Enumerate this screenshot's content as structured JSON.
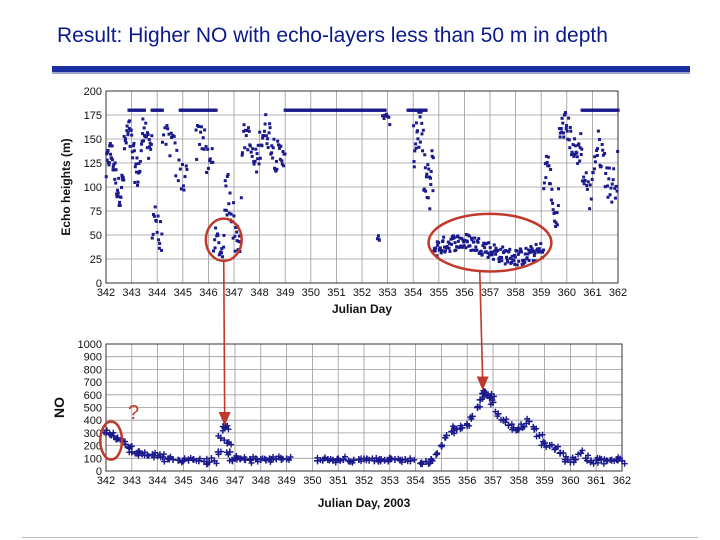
{
  "slide": {
    "title": "Result: Higher NO with echo-layers less than 50 m in depth",
    "question_mark": "?",
    "accent_color": "#1c2f9e",
    "annotation_color": "#c0392b"
  },
  "chart_data": [
    {
      "type": "scatter",
      "title": "",
      "xlabel": "Julian Day",
      "ylabel": "Echo heights (m)",
      "xlim": [
        342,
        362
      ],
      "ylim": [
        0,
        200
      ],
      "xticks": [
        342,
        343,
        344,
        345,
        346,
        347,
        348,
        349,
        350,
        351,
        352,
        353,
        354,
        355,
        356,
        357,
        358,
        359,
        360,
        361,
        362
      ],
      "xtick_labels": [
        "342",
        "343",
        "344",
        "345",
        "346",
        "347",
        "348",
        "349",
        "350",
        "351",
        "352",
        "353",
        "354",
        "355",
        "356",
        "357",
        "358",
        "359",
        "360",
        "361",
        "362"
      ],
      "yticks": [
        0,
        25,
        50,
        75,
        100,
        125,
        150,
        175,
        200
      ],
      "ytick_labels": [
        "0",
        "25",
        "50",
        "75",
        "100",
        "125",
        "150",
        "175",
        "200"
      ],
      "grid": true,
      "marker_color": "#1a1a8c",
      "series": [
        {
          "segments": [
            {
              "x0": 342.0,
              "x1": 342.7,
              "base": 115,
              "amp": 20,
              "noise": 15,
              "n": 40
            },
            {
              "x0": 342.7,
              "x1": 343.4,
              "base": 135,
              "amp": 20,
              "noise": 18,
              "n": 35
            },
            {
              "x0": 343.4,
              "x1": 343.8,
              "base": 150,
              "amp": 15,
              "noise": 15,
              "n": 20
            },
            {
              "x0": 343.8,
              "x1": 344.2,
              "base": 60,
              "amp": 15,
              "noise": 20,
              "n": 15
            },
            {
              "x0": 344.2,
              "x1": 345.2,
              "base": 130,
              "amp": 20,
              "noise": 20,
              "n": 25
            },
            {
              "x0": 345.5,
              "x1": 346.2,
              "base": 140,
              "amp": 20,
              "noise": 20,
              "n": 20
            },
            {
              "x0": 346.2,
              "x1": 346.6,
              "base": 40,
              "amp": 8,
              "noise": 10,
              "n": 15
            },
            {
              "x0": 346.6,
              "x1": 347.3,
              "base": 70,
              "amp": 25,
              "noise": 25,
              "n": 30
            },
            {
              "x0": 347.3,
              "x1": 348.0,
              "base": 140,
              "amp": 15,
              "noise": 15,
              "n": 25
            },
            {
              "x0": 348.0,
              "x1": 349.0,
              "base": 145,
              "amp": 15,
              "noise": 18,
              "n": 40
            },
            {
              "x0": 352.6,
              "x1": 352.7,
              "base": 45,
              "amp": 3,
              "noise": 4,
              "n": 4
            },
            {
              "x0": 352.8,
              "x1": 353.1,
              "base": 172,
              "amp": 4,
              "noise": 6,
              "n": 8
            },
            {
              "x0": 354.0,
              "x1": 354.8,
              "base": 130,
              "amp": 35,
              "noise": 30,
              "n": 40
            },
            {
              "x0": 354.8,
              "x1": 359.1,
              "base": 35,
              "amp": 8,
              "noise": 9,
              "n": 170
            },
            {
              "x0": 359.1,
              "x1": 359.7,
              "base": 95,
              "amp": 30,
              "noise": 15,
              "n": 25
            },
            {
              "x0": 359.7,
              "x1": 360.6,
              "base": 150,
              "amp": 15,
              "noise": 15,
              "n": 40
            },
            {
              "x0": 360.6,
              "x1": 361.0,
              "base": 100,
              "amp": 10,
              "noise": 15,
              "n": 12
            },
            {
              "x0": 361.0,
              "x1": 362.0,
              "base": 120,
              "amp": 20,
              "noise": 20,
              "n": 35
            }
          ],
          "saturated_runs": [
            {
              "x0": 342.9,
              "x1": 343.5,
              "y": 180
            },
            {
              "x0": 343.8,
              "x1": 344.2,
              "y": 180
            },
            {
              "x0": 344.9,
              "x1": 346.3,
              "y": 180
            },
            {
              "x0": 349.0,
              "x1": 352.9,
              "y": 180
            },
            {
              "x0": 353.8,
              "x1": 354.5,
              "y": 180
            },
            {
              "x0": 360.6,
              "x1": 362.0,
              "y": 180
            }
          ]
        }
      ],
      "annotations": [
        {
          "type": "circle",
          "cx": 346.6,
          "cy": 45,
          "rx_days": 0.7,
          "ry_units": 22
        },
        {
          "type": "circle",
          "cx": 357.0,
          "cy": 42,
          "rx_days": 2.4,
          "ry_units": 30
        }
      ]
    },
    {
      "type": "scatter",
      "title": "",
      "xlabel": "Julian Day, 2003",
      "ylabel": "NO",
      "xlim": [
        342,
        362
      ],
      "ylim": [
        0,
        1000
      ],
      "xticks": [
        342,
        343,
        344,
        345,
        346,
        347,
        348,
        349,
        350,
        351,
        352,
        353,
        354,
        355,
        356,
        357,
        358,
        359,
        360,
        361,
        362
      ],
      "xtick_labels": [
        "342",
        "343",
        "344",
        "345",
        "346",
        "347",
        "348",
        "349",
        "350",
        "351",
        "352",
        "353",
        "354",
        "355",
        "356",
        "357",
        "358",
        "359",
        "360",
        "361",
        "362"
      ],
      "yticks": [
        0,
        100,
        200,
        300,
        400,
        500,
        600,
        700,
        800,
        900,
        1000
      ],
      "ytick_labels": [
        "0",
        "100",
        "200",
        "300",
        "400",
        "500",
        "600",
        "700",
        "800",
        "900",
        "1000"
      ],
      "grid": true,
      "marker_color": "#1a1a8c",
      "series": [
        {
          "points": [
            [
              342.0,
              300
            ],
            [
              342.15,
              290
            ],
            [
              342.3,
              275
            ],
            [
              342.45,
              260
            ],
            [
              342.6,
              240
            ],
            [
              342.75,
              210
            ],
            [
              342.9,
              180
            ],
            [
              343.0,
              150
            ],
            [
              343.2,
              140
            ],
            [
              343.4,
              135
            ],
            [
              343.6,
              125
            ],
            [
              343.8,
              130
            ],
            [
              344.0,
              120
            ],
            [
              344.2,
              110
            ],
            [
              344.4,
              95
            ],
            [
              344.6,
              90
            ],
            [
              344.8,
              85
            ],
            [
              345.0,
              80
            ],
            [
              345.2,
              85
            ],
            [
              345.4,
              90
            ],
            [
              345.6,
              80
            ],
            [
              345.8,
              75
            ],
            [
              346.0,
              70
            ],
            [
              346.2,
              80
            ],
            [
              346.35,
              150
            ],
            [
              346.45,
              260
            ],
            [
              346.55,
              350
            ],
            [
              346.6,
              340
            ],
            [
              346.7,
              220
            ],
            [
              346.8,
              150
            ],
            [
              346.9,
              80
            ],
            [
              347.0,
              100
            ],
            [
              347.2,
              95
            ],
            [
              347.4,
              90
            ],
            [
              347.6,
              85
            ],
            [
              347.8,
              95
            ],
            [
              348.0,
              90
            ],
            [
              348.2,
              85
            ],
            [
              348.4,
              90
            ],
            [
              348.6,
              95
            ],
            [
              348.8,
              90
            ],
            [
              349.0,
              95
            ],
            [
              350.2,
              80
            ],
            [
              350.4,
              85
            ],
            [
              350.6,
              90
            ],
            [
              350.8,
              85
            ],
            [
              351.0,
              95
            ],
            [
              351.2,
              90
            ],
            [
              351.4,
              80
            ],
            [
              351.6,
              85
            ],
            [
              351.8,
              90
            ],
            [
              352.0,
              95
            ],
            [
              352.2,
              85
            ],
            [
              352.4,
              80
            ],
            [
              352.6,
              90
            ],
            [
              352.8,
              85
            ],
            [
              353.0,
              95
            ],
            [
              353.2,
              90
            ],
            [
              353.4,
              85
            ],
            [
              353.6,
              90
            ],
            [
              353.8,
              80
            ],
            [
              354.2,
              60
            ],
            [
              354.4,
              75
            ],
            [
              354.6,
              90
            ],
            [
              354.8,
              130
            ],
            [
              355.0,
              200
            ],
            [
              355.2,
              280
            ],
            [
              355.4,
              310
            ],
            [
              355.6,
              330
            ],
            [
              355.8,
              340
            ],
            [
              356.0,
              360
            ],
            [
              356.2,
              430
            ],
            [
              356.4,
              500
            ],
            [
              356.5,
              560
            ],
            [
              356.6,
              610
            ],
            [
              356.7,
              620
            ],
            [
              356.8,
              600
            ],
            [
              356.9,
              580
            ],
            [
              357.0,
              540
            ],
            [
              357.2,
              450
            ],
            [
              357.4,
              400
            ],
            [
              357.6,
              360
            ],
            [
              357.8,
              340
            ],
            [
              358.0,
              330
            ],
            [
              358.2,
              350
            ],
            [
              358.4,
              390
            ],
            [
              358.6,
              330
            ],
            [
              358.8,
              280
            ],
            [
              359.0,
              220
            ],
            [
              359.2,
              200
            ],
            [
              359.4,
              170
            ],
            [
              359.6,
              140
            ],
            [
              359.8,
              90
            ],
            [
              360.0,
              70
            ],
            [
              360.2,
              90
            ],
            [
              360.4,
              140
            ],
            [
              360.6,
              100
            ],
            [
              360.8,
              80
            ],
            [
              361.0,
              85
            ],
            [
              361.2,
              90
            ],
            [
              361.4,
              80
            ],
            [
              361.6,
              85
            ],
            [
              361.8,
              90
            ],
            [
              362.0,
              80
            ]
          ]
        }
      ],
      "annotations": [
        {
          "type": "circle",
          "cx": 342.2,
          "cy": 240,
          "rx_days": 0.42,
          "ry_units": 150
        }
      ],
      "arrows": [
        {
          "from_chart": 0,
          "x": 346.6,
          "y_from": 23,
          "to_y": 370
        },
        {
          "from_chart": 0,
          "x": 356.6,
          "y_from": 12,
          "to_y": 650
        }
      ]
    }
  ]
}
